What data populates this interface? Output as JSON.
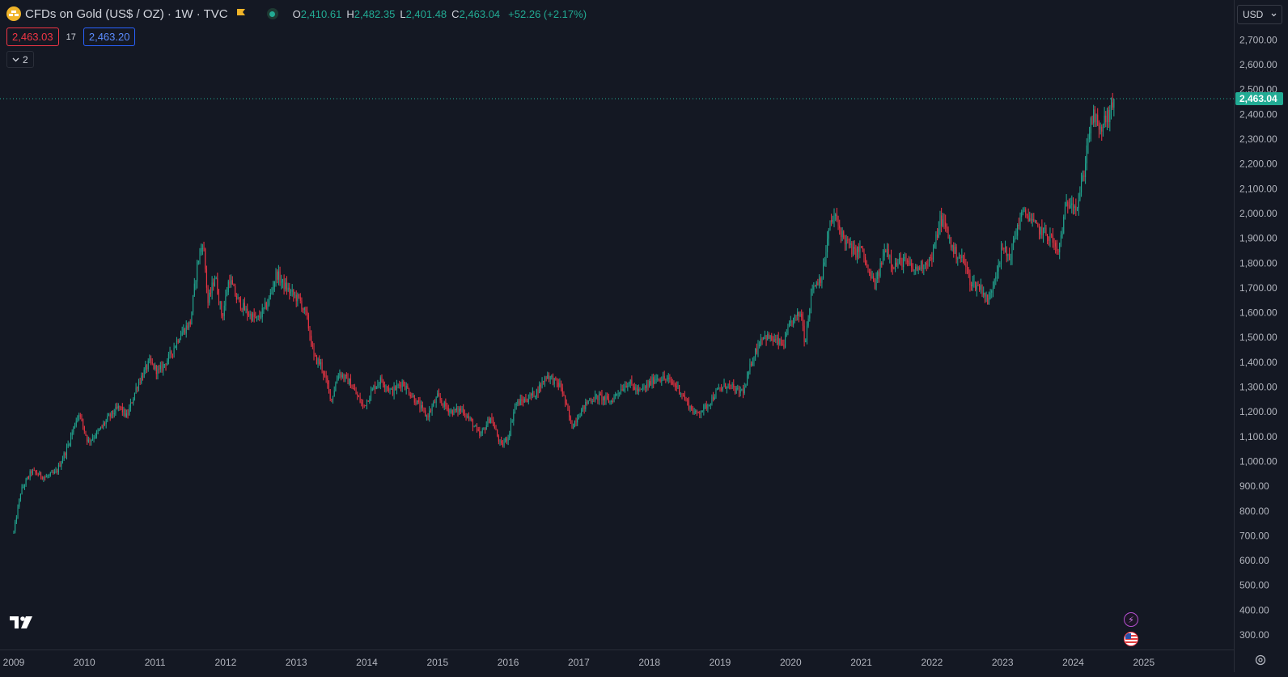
{
  "legend": {
    "symbol_title": "CFDs on Gold (US$ / OZ) · 1W · TVC",
    "open_label": "O",
    "open_value": "2,410.61",
    "high_label": "H",
    "high_value": "2,482.35",
    "low_label": "L",
    "low_value": "2,401.48",
    "close_label": "C",
    "close_value": "2,463.04",
    "change": "+52.26 (+2.17%)",
    "logo_icon": "gold-bars-icon",
    "flag_icon": "flag-icon"
  },
  "quote": {
    "bid": "2,463.03",
    "spread": "17",
    "ask": "2,463.20"
  },
  "indicators_toggle": {
    "count": "2"
  },
  "price_axis": {
    "currency": "USD",
    "last_price_label": "2,463.04",
    "labels": [
      "2,700.00",
      "2,600.00",
      "2,500.00",
      "2,400.00",
      "2,300.00",
      "2,200.00",
      "2,100.00",
      "2,000.00",
      "1,900.00",
      "1,800.00",
      "1,700.00",
      "1,600.00",
      "1,500.00",
      "1,400.00",
      "1,300.00",
      "1,200.00",
      "1,100.00",
      "1,000.00",
      "900.00",
      "800.00",
      "700.00",
      "600.00",
      "500.00",
      "400.00",
      "300.00"
    ]
  },
  "time_axis": {
    "labels": [
      "2009",
      "2010",
      "2011",
      "2012",
      "2013",
      "2014",
      "2015",
      "2016",
      "2017",
      "2018",
      "2019",
      "2020",
      "2021",
      "2022",
      "2023",
      "2024",
      "2025"
    ]
  },
  "colors": {
    "background": "#141823",
    "up": "#22ab94",
    "down": "#f23645",
    "last_price": "#22ab94"
  },
  "chart_data": {
    "type": "candlestick",
    "interval": "1W",
    "ylim": [
      250,
      2760
    ],
    "xlim": [
      2009.0,
      2026.0
    ],
    "last_price": 2463.04,
    "path": [
      [
        2009.0,
        715
      ],
      [
        2009.1,
        880
      ],
      [
        2009.25,
        960
      ],
      [
        2009.45,
        935
      ],
      [
        2009.6,
        955
      ],
      [
        2009.75,
        1050
      ],
      [
        2009.92,
        1200
      ],
      [
        2010.05,
        1080
      ],
      [
        2010.2,
        1120
      ],
      [
        2010.35,
        1180
      ],
      [
        2010.5,
        1220
      ],
      [
        2010.6,
        1180
      ],
      [
        2010.75,
        1310
      ],
      [
        2010.92,
        1400
      ],
      [
        2011.05,
        1360
      ],
      [
        2011.2,
        1420
      ],
      [
        2011.35,
        1510
      ],
      [
        2011.5,
        1560
      ],
      [
        2011.6,
        1800
      ],
      [
        2011.68,
        1890
      ],
      [
        2011.75,
        1640
      ],
      [
        2011.85,
        1750
      ],
      [
        2011.95,
        1580
      ],
      [
        2012.05,
        1740
      ],
      [
        2012.15,
        1660
      ],
      [
        2012.3,
        1600
      ],
      [
        2012.45,
        1570
      ],
      [
        2012.6,
        1640
      ],
      [
        2012.72,
        1760
      ],
      [
        2012.8,
        1720
      ],
      [
        2012.92,
        1680
      ],
      [
        2013.05,
        1650
      ],
      [
        2013.15,
        1580
      ],
      [
        2013.25,
        1420
      ],
      [
        2013.35,
        1390
      ],
      [
        2013.5,
        1250
      ],
      [
        2013.6,
        1360
      ],
      [
        2013.75,
        1320
      ],
      [
        2013.95,
        1220
      ],
      [
        2014.1,
        1300
      ],
      [
        2014.2,
        1330
      ],
      [
        2014.35,
        1280
      ],
      [
        2014.5,
        1320
      ],
      [
        2014.65,
        1260
      ],
      [
        2014.85,
        1180
      ],
      [
        2015.0,
        1260
      ],
      [
        2015.08,
        1230
      ],
      [
        2015.2,
        1200
      ],
      [
        2015.35,
        1210
      ],
      [
        2015.5,
        1150
      ],
      [
        2015.6,
        1100
      ],
      [
        2015.75,
        1180
      ],
      [
        2015.9,
        1060
      ],
      [
        2016.0,
        1100
      ],
      [
        2016.1,
        1230
      ],
      [
        2016.25,
        1250
      ],
      [
        2016.4,
        1280
      ],
      [
        2016.55,
        1350
      ],
      [
        2016.75,
        1300
      ],
      [
        2016.9,
        1140
      ],
      [
        2017.0,
        1190
      ],
      [
        2017.15,
        1250
      ],
      [
        2017.3,
        1260
      ],
      [
        2017.45,
        1240
      ],
      [
        2017.55,
        1280
      ],
      [
        2017.7,
        1320
      ],
      [
        2017.85,
        1280
      ],
      [
        2017.95,
        1300
      ],
      [
        2018.1,
        1340
      ],
      [
        2018.25,
        1330
      ],
      [
        2018.4,
        1300
      ],
      [
        2018.55,
        1230
      ],
      [
        2018.65,
        1190
      ],
      [
        2018.8,
        1220
      ],
      [
        2018.95,
        1280
      ],
      [
        2019.1,
        1310
      ],
      [
        2019.25,
        1280
      ],
      [
        2019.35,
        1290
      ],
      [
        2019.45,
        1410
      ],
      [
        2019.6,
        1510
      ],
      [
        2019.75,
        1490
      ],
      [
        2019.9,
        1470
      ],
      [
        2020.0,
        1560
      ],
      [
        2020.15,
        1600
      ],
      [
        2020.2,
        1480
      ],
      [
        2020.3,
        1700
      ],
      [
        2020.45,
        1750
      ],
      [
        2020.55,
        1950
      ],
      [
        2020.62,
        1990
      ],
      [
        2020.75,
        1900
      ],
      [
        2020.9,
        1840
      ],
      [
        2021.0,
        1860
      ],
      [
        2021.1,
        1760
      ],
      [
        2021.2,
        1710
      ],
      [
        2021.35,
        1870
      ],
      [
        2021.45,
        1790
      ],
      [
        2021.6,
        1810
      ],
      [
        2021.75,
        1770
      ],
      [
        2021.9,
        1800
      ],
      [
        2022.0,
        1820
      ],
      [
        2022.12,
        1980
      ],
      [
        2022.2,
        1940
      ],
      [
        2022.3,
        1850
      ],
      [
        2022.45,
        1810
      ],
      [
        2022.55,
        1720
      ],
      [
        2022.7,
        1700
      ],
      [
        2022.8,
        1640
      ],
      [
        2022.9,
        1760
      ],
      [
        2023.0,
        1860
      ],
      [
        2023.1,
        1820
      ],
      [
        2023.25,
        1990
      ],
      [
        2023.35,
        2000
      ],
      [
        2023.45,
        1950
      ],
      [
        2023.55,
        1930
      ],
      [
        2023.7,
        1900
      ],
      [
        2023.78,
        1830
      ],
      [
        2023.9,
        2030
      ],
      [
        2023.98,
        2060
      ],
      [
        2024.05,
        2020
      ],
      [
        2024.15,
        2160
      ],
      [
        2024.22,
        2330
      ],
      [
        2024.3,
        2400
      ],
      [
        2024.37,
        2320
      ],
      [
        2024.45,
        2380
      ],
      [
        2024.52,
        2400
      ],
      [
        2024.58,
        2463
      ]
    ]
  }
}
